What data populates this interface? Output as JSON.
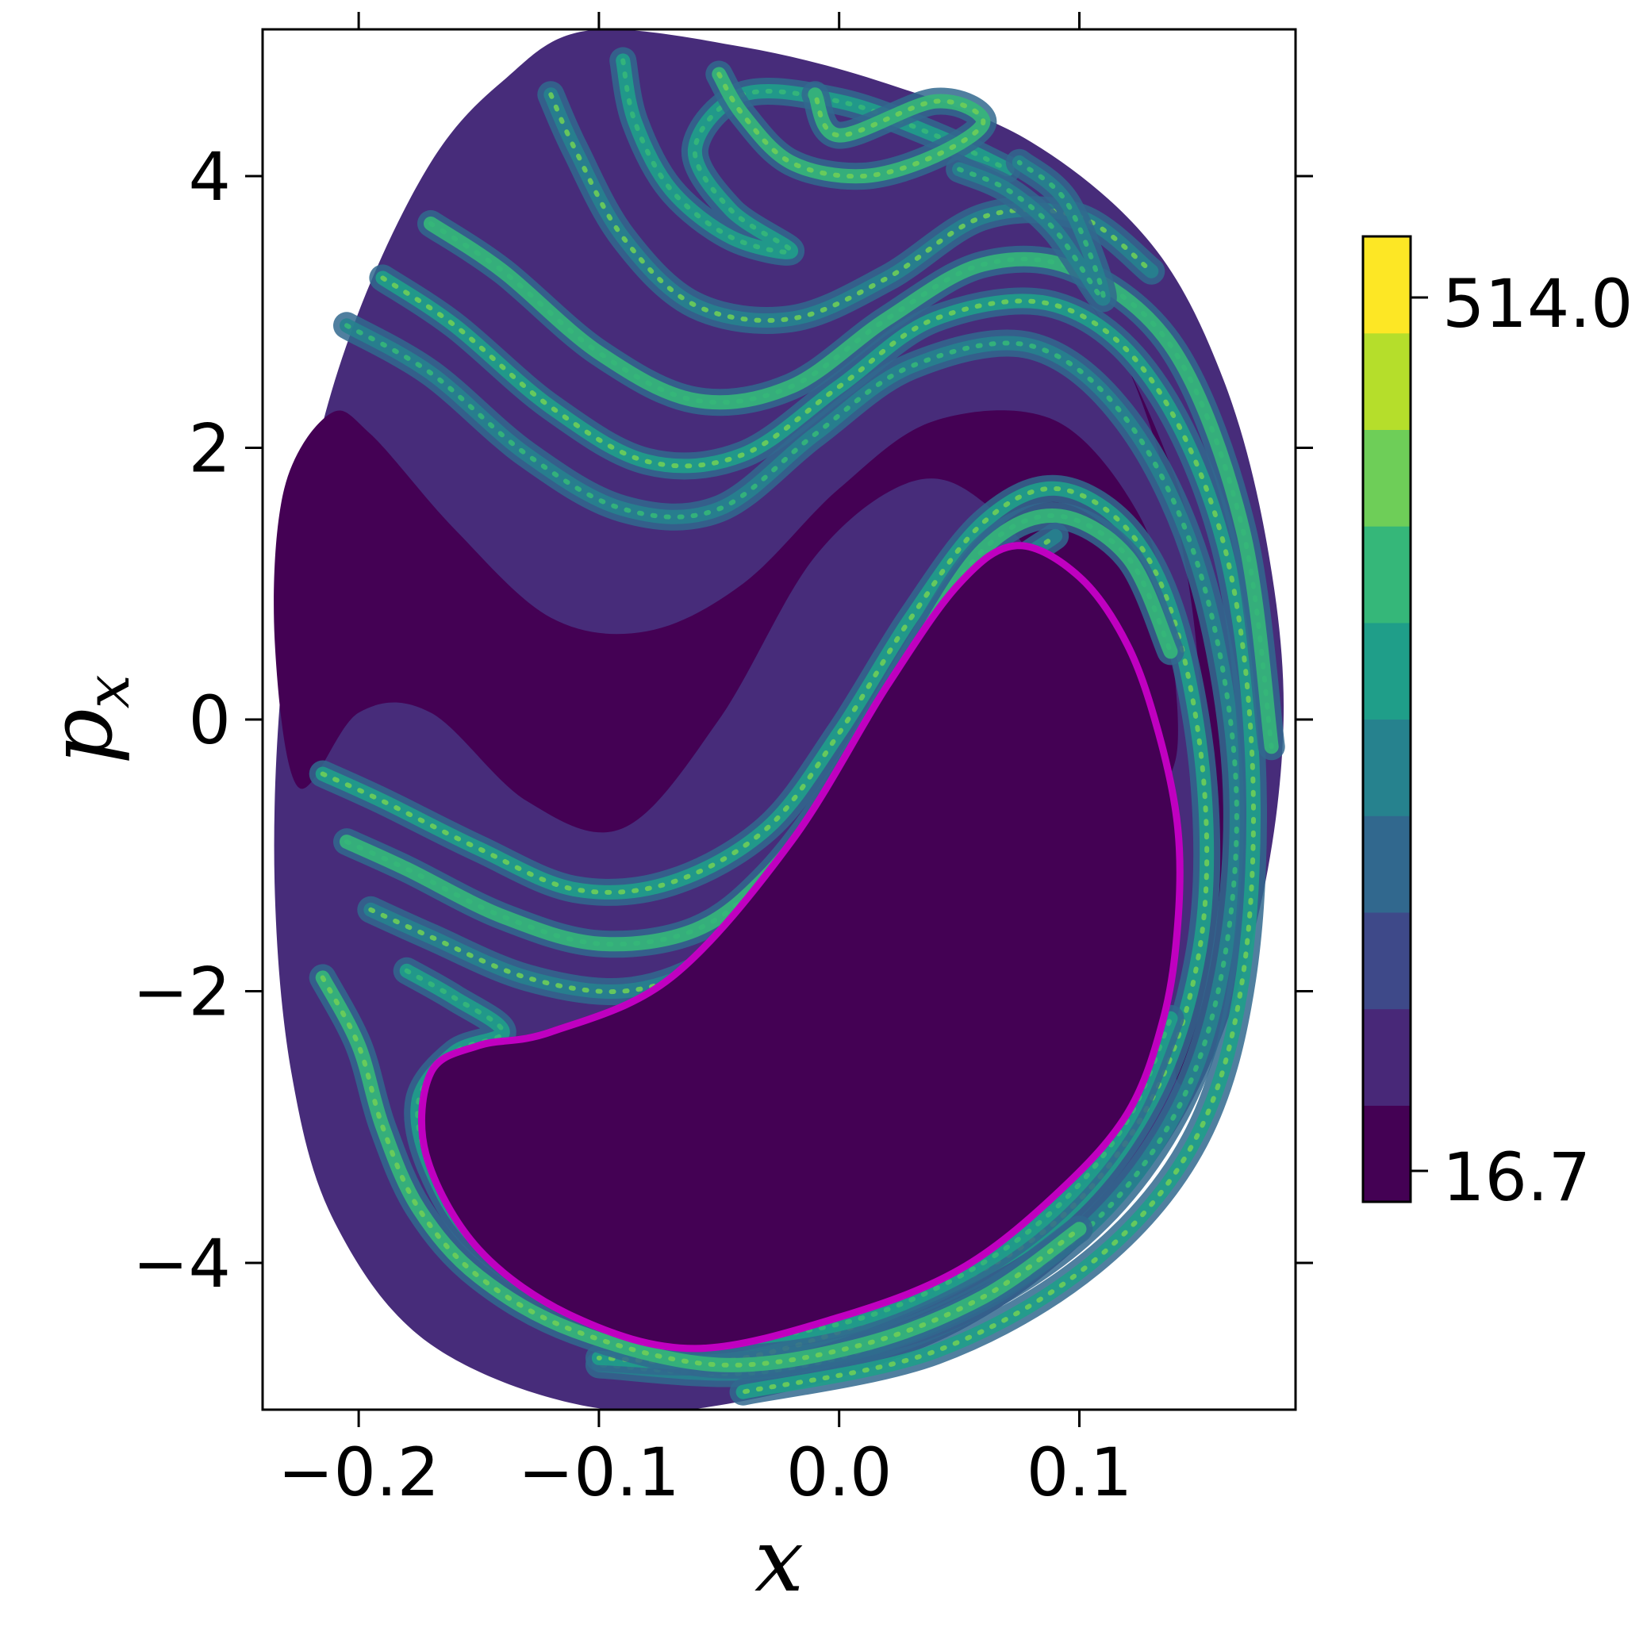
{
  "chart_data": {
    "type": "heatmap",
    "title": "",
    "xlabel": "x",
    "ylabel": "p",
    "ylabel_subscript": "x",
    "xlim": [
      -0.24,
      0.19
    ],
    "ylim": [
      -5.08,
      5.08
    ],
    "x_ticks": [
      {
        "value": -0.2,
        "label": "−0.2"
      },
      {
        "value": -0.1,
        "label": "−0.1"
      },
      {
        "value": 0.0,
        "label": "0.0"
      },
      {
        "value": 0.1,
        "label": "0.1"
      }
    ],
    "y_ticks": [
      {
        "value": 4,
        "label": "4"
      },
      {
        "value": 2,
        "label": "2"
      },
      {
        "value": 0,
        "label": "0"
      },
      {
        "value": -2,
        "label": "−2"
      },
      {
        "value": -4,
        "label": "−4"
      }
    ],
    "grid": false,
    "colormap": "viridis",
    "colorbar": {
      "min": 16.7,
      "max": 514.0,
      "tick_labels": [
        "514.0",
        "16.7"
      ],
      "levels": 11,
      "colors": [
        "#440154",
        "#482878",
        "#3e4989",
        "#31688e",
        "#26828e",
        "#1f9e89",
        "#35b779",
        "#6ece58",
        "#b5de2b",
        "#fde725"
      ]
    },
    "regions": {
      "background_level_color": "#440154",
      "band_level_color": "#472c7a",
      "filament_colors": [
        "#31688e",
        "#26828e",
        "#1f9e89",
        "#35b779",
        "#6ece58",
        "#b5de2b"
      ]
    },
    "boundary_curve": {
      "color": "#c000c0",
      "points": [
        [
          0.074,
          1.28
        ],
        [
          0.1,
          1.05
        ],
        [
          0.12,
          0.55
        ],
        [
          0.133,
          -0.1
        ],
        [
          0.141,
          -0.8
        ],
        [
          0.141,
          -1.5
        ],
        [
          0.135,
          -2.2
        ],
        [
          0.12,
          -2.9
        ],
        [
          0.09,
          -3.5
        ],
        [
          0.05,
          -4.05
        ],
        [
          0.0,
          -4.4
        ],
        [
          -0.06,
          -4.63
        ],
        [
          -0.11,
          -4.4
        ],
        [
          -0.15,
          -3.9
        ],
        [
          -0.172,
          -3.2
        ],
        [
          -0.17,
          -2.6
        ],
        [
          -0.15,
          -2.4
        ],
        [
          -0.12,
          -2.3
        ],
        [
          -0.07,
          -1.9
        ],
        [
          -0.02,
          -0.9
        ],
        [
          0.02,
          0.25
        ],
        [
          0.05,
          1.0
        ]
      ]
    },
    "outer_region": {
      "points": [
        [
          -0.105,
          5.07
        ],
        [
          -0.04,
          4.95
        ],
        [
          0.02,
          4.68
        ],
        [
          0.08,
          4.25
        ],
        [
          0.13,
          3.5
        ],
        [
          0.16,
          2.5
        ],
        [
          0.178,
          1.3
        ],
        [
          0.185,
          0.0
        ],
        [
          0.175,
          -1.4
        ],
        [
          0.15,
          -2.7
        ],
        [
          0.11,
          -3.7
        ],
        [
          0.05,
          -4.5
        ],
        [
          -0.03,
          -4.98
        ],
        [
          -0.1,
          -5.07
        ],
        [
          -0.17,
          -4.6
        ],
        [
          -0.21,
          -3.7
        ],
        [
          -0.228,
          -2.6
        ],
        [
          -0.235,
          -1.2
        ],
        [
          -0.232,
          0.3
        ],
        [
          -0.22,
          1.8
        ],
        [
          -0.2,
          3.0
        ],
        [
          -0.17,
          4.1
        ],
        [
          -0.14,
          4.7
        ]
      ]
    },
    "upper_core": {
      "points": [
        [
          -0.231,
          1.7
        ],
        [
          -0.212,
          2.25
        ],
        [
          -0.195,
          2.1
        ],
        [
          -0.16,
          1.4
        ],
        [
          -0.12,
          0.75
        ],
        [
          -0.08,
          0.65
        ],
        [
          -0.04,
          1.0
        ],
        [
          0.0,
          1.7
        ],
        [
          0.04,
          2.2
        ],
        [
          0.09,
          2.2
        ],
        [
          0.125,
          1.5
        ],
        [
          0.137,
          0.7
        ],
        [
          0.14,
          -0.3
        ],
        [
          0.12,
          -0.5
        ],
        [
          0.09,
          0.9
        ],
        [
          0.06,
          1.6
        ],
        [
          0.03,
          1.75
        ],
        [
          -0.01,
          1.2
        ],
        [
          -0.05,
          0.0
        ],
        [
          -0.09,
          -0.8
        ],
        [
          -0.13,
          -0.6
        ],
        [
          -0.17,
          0.05
        ],
        [
          -0.2,
          0.05
        ],
        [
          -0.225,
          -0.5
        ],
        [
          -0.235,
          0.6
        ]
      ]
    },
    "right_core": {
      "points": [
        [
          0.095,
          3.3
        ],
        [
          0.12,
          2.6
        ],
        [
          0.145,
          1.5
        ],
        [
          0.16,
          0.2
        ],
        [
          0.163,
          -1.2
        ],
        [
          0.155,
          -2.4
        ],
        [
          0.14,
          -2.6
        ],
        [
          0.152,
          -1.2
        ],
        [
          0.15,
          0.3
        ],
        [
          0.14,
          1.5
        ],
        [
          0.12,
          2.6
        ]
      ]
    },
    "filaments": [
      [
        [
          -0.205,
          2.9
        ],
        [
          -0.17,
          2.55
        ],
        [
          -0.13,
          1.95
        ],
        [
          -0.09,
          1.55
        ],
        [
          -0.05,
          1.55
        ],
        [
          -0.01,
          2.1
        ],
        [
          0.03,
          2.6
        ],
        [
          0.08,
          2.75
        ],
        [
          0.12,
          2.2
        ],
        [
          0.15,
          1.1
        ],
        [
          0.165,
          -0.4
        ],
        [
          0.16,
          -1.8
        ],
        [
          0.14,
          -2.9
        ],
        [
          0.1,
          -3.8
        ],
        [
          0.04,
          -4.45
        ],
        [
          -0.03,
          -4.8
        ],
        [
          -0.1,
          -4.75
        ]
      ],
      [
        [
          -0.19,
          3.25
        ],
        [
          -0.16,
          2.9
        ],
        [
          -0.12,
          2.3
        ],
        [
          -0.08,
          1.9
        ],
        [
          -0.04,
          1.95
        ],
        [
          0.0,
          2.45
        ],
        [
          0.04,
          2.95
        ],
        [
          0.09,
          3.05
        ],
        [
          0.13,
          2.5
        ],
        [
          0.16,
          1.3
        ],
        [
          0.172,
          -0.3
        ],
        [
          0.168,
          -1.9
        ],
        [
          0.148,
          -3.1
        ],
        [
          0.105,
          -4.0
        ],
        [
          0.04,
          -4.65
        ],
        [
          -0.04,
          -4.95
        ]
      ],
      [
        [
          -0.17,
          3.65
        ],
        [
          -0.14,
          3.3
        ],
        [
          -0.1,
          2.7
        ],
        [
          -0.06,
          2.35
        ],
        [
          -0.02,
          2.45
        ],
        [
          0.02,
          2.95
        ],
        [
          0.06,
          3.35
        ],
        [
          0.1,
          3.3
        ],
        [
          0.14,
          2.7
        ],
        [
          0.168,
          1.4
        ],
        [
          0.18,
          -0.2
        ]
      ],
      [
        [
          -0.12,
          4.6
        ],
        [
          -0.11,
          4.2
        ],
        [
          -0.09,
          3.55
        ],
        [
          -0.06,
          3.05
        ],
        [
          -0.02,
          2.95
        ],
        [
          0.02,
          3.25
        ],
        [
          0.06,
          3.7
        ],
        [
          0.1,
          3.7
        ],
        [
          0.13,
          3.3
        ]
      ],
      [
        [
          -0.09,
          4.85
        ],
        [
          -0.085,
          4.4
        ],
        [
          -0.07,
          3.9
        ],
        [
          -0.045,
          3.55
        ],
        [
          -0.02,
          3.45
        ],
        [
          -0.045,
          3.75
        ],
        [
          -0.06,
          4.2
        ],
        [
          -0.04,
          4.6
        ],
        [
          0.0,
          4.55
        ],
        [
          0.04,
          4.3
        ],
        [
          0.07,
          4.05
        ]
      ],
      [
        [
          -0.05,
          4.75
        ],
        [
          -0.04,
          4.45
        ],
        [
          -0.02,
          4.1
        ],
        [
          0.01,
          4.0
        ],
        [
          0.04,
          4.15
        ],
        [
          0.06,
          4.4
        ],
        [
          0.04,
          4.55
        ],
        [
          0.0,
          4.3
        ],
        [
          -0.01,
          4.6
        ]
      ],
      [
        [
          0.05,
          4.05
        ],
        [
          0.07,
          3.9
        ],
        [
          0.09,
          3.6
        ],
        [
          0.11,
          3.1
        ],
        [
          0.095,
          3.8
        ],
        [
          0.075,
          4.1
        ]
      ],
      [
        [
          -0.215,
          -0.4
        ],
        [
          -0.19,
          -0.6
        ],
        [
          -0.15,
          -0.95
        ],
        [
          -0.11,
          -1.25
        ],
        [
          -0.07,
          -1.2
        ],
        [
          -0.03,
          -0.8
        ],
        [
          0.0,
          -0.1
        ],
        [
          0.03,
          0.75
        ],
        [
          0.06,
          1.45
        ],
        [
          0.09,
          1.7
        ],
        [
          0.12,
          1.4
        ],
        [
          0.14,
          0.7
        ],
        [
          0.152,
          -0.5
        ],
        [
          0.15,
          -1.7
        ],
        [
          0.13,
          -2.8
        ],
        [
          0.09,
          -3.7
        ],
        [
          0.03,
          -4.3
        ],
        [
          -0.04,
          -4.7
        ],
        [
          -0.1,
          -4.7
        ]
      ],
      [
        [
          -0.205,
          -0.9
        ],
        [
          -0.18,
          -1.1
        ],
        [
          -0.14,
          -1.45
        ],
        [
          -0.1,
          -1.65
        ],
        [
          -0.06,
          -1.55
        ],
        [
          -0.03,
          -1.15
        ],
        [
          0.0,
          -0.45
        ],
        [
          0.03,
          0.45
        ],
        [
          0.06,
          1.25
        ],
        [
          0.09,
          1.5
        ],
        [
          0.12,
          1.2
        ],
        [
          0.138,
          0.5
        ]
      ],
      [
        [
          -0.195,
          -1.4
        ],
        [
          -0.17,
          -1.6
        ],
        [
          -0.13,
          -1.9
        ],
        [
          -0.09,
          -2.0
        ],
        [
          -0.055,
          -1.8
        ],
        [
          -0.025,
          -1.35
        ],
        [
          0.005,
          -0.65
        ],
        [
          0.035,
          0.2
        ],
        [
          0.065,
          1.0
        ],
        [
          0.09,
          1.35
        ]
      ],
      [
        [
          -0.18,
          -1.85
        ],
        [
          -0.16,
          -2.05
        ],
        [
          -0.14,
          -2.3
        ],
        [
          -0.16,
          -2.45
        ],
        [
          -0.175,
          -2.8
        ],
        [
          -0.17,
          -3.3
        ],
        [
          -0.15,
          -3.85
        ],
        [
          -0.11,
          -4.3
        ],
        [
          -0.06,
          -4.55
        ],
        [
          0.0,
          -4.45
        ],
        [
          0.05,
          -4.1
        ],
        [
          0.09,
          -3.6
        ],
        [
          0.12,
          -2.95
        ],
        [
          0.138,
          -2.2
        ]
      ],
      [
        [
          -0.215,
          -1.9
        ],
        [
          -0.2,
          -2.4
        ],
        [
          -0.19,
          -3.0
        ],
        [
          -0.175,
          -3.6
        ],
        [
          -0.15,
          -4.1
        ],
        [
          -0.11,
          -4.5
        ],
        [
          -0.05,
          -4.75
        ],
        [
          0.01,
          -4.6
        ],
        [
          0.06,
          -4.25
        ],
        [
          0.1,
          -3.75
        ]
      ]
    ]
  }
}
